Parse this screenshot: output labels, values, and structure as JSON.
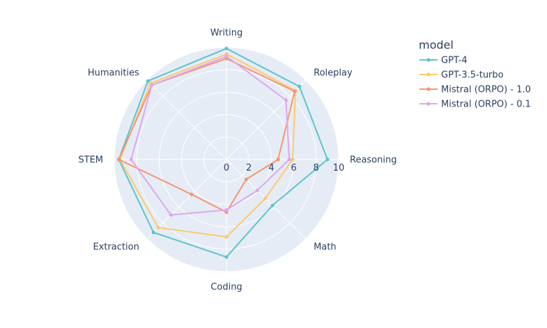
{
  "chart_data": {
    "type": "radar",
    "categories": [
      "Writing",
      "Roleplay",
      "Reasoning",
      "Math",
      "Coding",
      "Extraction",
      "STEM",
      "Humanities"
    ],
    "radial_range": [
      0,
      10
    ],
    "radial_ticks": [
      "0",
      "2",
      "4",
      "6",
      "8",
      "10"
    ],
    "legend_title": "model",
    "series": [
      {
        "name": "GPT-4",
        "color": "#5ec4ca",
        "values": [
          9.9,
          9.2,
          9.0,
          5.8,
          8.7,
          9.2,
          9.6,
          9.9
        ]
      },
      {
        "name": "GPT-3.5-turbo",
        "color": "#fdc96c",
        "values": [
          9.4,
          8.7,
          5.9,
          4.9,
          6.9,
          8.6,
          9.5,
          9.6
        ]
      },
      {
        "name": "Mistral (ORPO) - 1.0",
        "color": "#f7956f",
        "values": [
          9.0,
          8.6,
          4.6,
          2.5,
          4.7,
          4.4,
          9.6,
          9.4
        ]
      },
      {
        "name": "Mistral (ORPO) - 0.1",
        "color": "#dfa6ee",
        "values": [
          9.2,
          7.5,
          5.6,
          3.9,
          4.5,
          7.0,
          8.5,
          9.4
        ]
      }
    ]
  }
}
